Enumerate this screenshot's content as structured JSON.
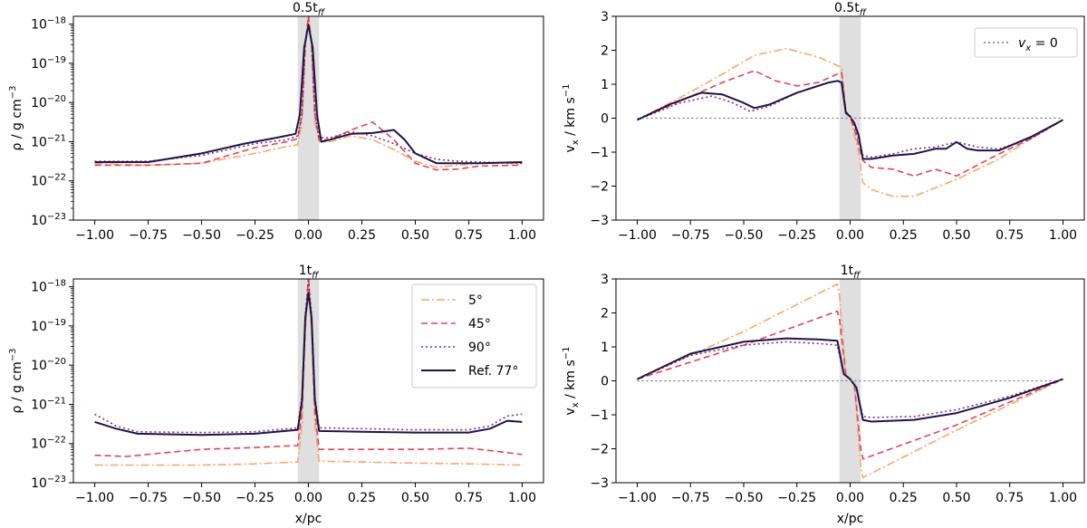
{
  "colors": {
    "5deg": "#f9a66b",
    "45deg": "#e0455f",
    "90deg": "#8a2a7a",
    "ref": "#1d1447",
    "zero_line": "#777777",
    "shade": "#d9d9d9"
  },
  "shared": {
    "xlabel": "x/pc",
    "density_ylabel_main": "ρ / g cm",
    "density_ylabel_exp": "−3",
    "velocity_ylabel_main": "v",
    "velocity_ylabel_sub": "x",
    "velocity_ylabel_unit": " / km s",
    "velocity_ylabel_exp": "−1",
    "x_ticks": [
      "−1.00",
      "−0.75",
      "−0.50",
      "−0.25",
      "0.00",
      "0.25",
      "0.50",
      "0.75",
      "1.00"
    ],
    "density_yticks": [
      {
        "base": "10",
        "exp": "−23"
      },
      {
        "base": "10",
        "exp": "−22"
      },
      {
        "base": "10",
        "exp": "−21"
      },
      {
        "base": "10",
        "exp": "−20"
      },
      {
        "base": "10",
        "exp": "−19"
      },
      {
        "base": "10",
        "exp": "−18"
      }
    ],
    "velocity_yticks": [
      "−3",
      "−2",
      "−1",
      "0",
      "1",
      "2",
      "3"
    ],
    "shaded_region_x": [
      -0.05,
      0.05
    ]
  },
  "legend_density": {
    "entries": [
      {
        "key": "5deg",
        "label": "5°"
      },
      {
        "key": "45deg",
        "label": "45°"
      },
      {
        "key": "90deg",
        "label": "90°"
      },
      {
        "key": "ref",
        "label": "Ref. 77°"
      }
    ]
  },
  "legend_velocity": {
    "main": "v",
    "sub": "x",
    "rest": " = 0"
  },
  "chart_data": [
    {
      "type": "line",
      "panel": "density_0.5tff",
      "title_main": "0.5t",
      "title_sub": "ff",
      "xlim": [
        -1.1,
        1.1
      ],
      "ylim_log10": [
        -23,
        -17.8
      ],
      "xlabel": "",
      "ylabel": "ρ / g cm−3",
      "series": [
        {
          "key": "5deg",
          "name": "5°",
          "x": [
            -1,
            -0.75,
            -0.5,
            -0.25,
            -0.1,
            -0.05,
            -0.03,
            -0.015,
            0,
            0.015,
            0.03,
            0.05,
            0.1,
            0.2,
            0.3,
            0.4,
            0.5,
            0.6,
            0.7,
            0.8,
            1.0
          ],
          "y_log10": [
            -21.56,
            -21.6,
            -21.55,
            -21.3,
            -21.12,
            -21.08,
            -20.5,
            -18.6,
            -17.7,
            -18.6,
            -20.5,
            -21.0,
            -21.0,
            -20.85,
            -20.95,
            -21.2,
            -21.5,
            -21.65,
            -21.6,
            -21.55,
            -21.56
          ]
        },
        {
          "key": "45deg",
          "name": "45°",
          "x": [
            -1,
            -0.75,
            -0.5,
            -0.25,
            -0.1,
            -0.05,
            -0.03,
            -0.015,
            0,
            0.015,
            0.03,
            0.05,
            0.1,
            0.2,
            0.3,
            0.4,
            0.5,
            0.6,
            0.7,
            0.8,
            1.0
          ],
          "y_log10": [
            -21.6,
            -21.6,
            -21.55,
            -21.15,
            -21.0,
            -20.92,
            -20.3,
            -18.5,
            -17.8,
            -18.5,
            -20.3,
            -20.95,
            -20.95,
            -20.7,
            -20.5,
            -20.95,
            -21.55,
            -21.72,
            -21.7,
            -21.62,
            -21.6
          ]
        },
        {
          "key": "90deg",
          "name": "90°",
          "x": [
            -1,
            -0.75,
            -0.5,
            -0.25,
            -0.1,
            -0.05,
            -0.03,
            -0.015,
            0,
            0.015,
            0.03,
            0.05,
            0.1,
            0.2,
            0.3,
            0.4,
            0.5,
            0.6,
            0.7,
            0.8,
            1.0
          ],
          "y_log10": [
            -21.5,
            -21.5,
            -21.35,
            -21.05,
            -20.95,
            -20.85,
            -20.3,
            -18.5,
            -18.0,
            -18.5,
            -20.3,
            -20.9,
            -20.9,
            -20.75,
            -20.85,
            -21.05,
            -21.3,
            -21.45,
            -21.5,
            -21.52,
            -21.55
          ]
        },
        {
          "key": "ref",
          "name": "Ref. 77°",
          "x": [
            -1,
            -0.75,
            -0.5,
            -0.3,
            -0.15,
            -0.06,
            -0.04,
            -0.02,
            0,
            0.02,
            0.04,
            0.06,
            0.1,
            0.2,
            0.3,
            0.4,
            0.45,
            0.5,
            0.6,
            0.8,
            1.0
          ],
          "y_log10": [
            -21.52,
            -21.52,
            -21.3,
            -21.05,
            -20.9,
            -20.8,
            -20.3,
            -18.6,
            -18.02,
            -18.6,
            -20.3,
            -21.0,
            -20.95,
            -20.8,
            -20.78,
            -20.7,
            -20.95,
            -21.3,
            -21.55,
            -21.55,
            -21.52
          ]
        }
      ]
    },
    {
      "type": "line",
      "panel": "velocity_0.5tff",
      "title_main": "0.5t",
      "title_sub": "ff",
      "xlim": [
        -1.1,
        1.1
      ],
      "ylim": [
        -3,
        3
      ],
      "xlabel": "",
      "ylabel": "vx / km s−1",
      "series": [
        {
          "key": "5deg",
          "name": "5°",
          "x": [
            -1,
            -0.8,
            -0.6,
            -0.45,
            -0.3,
            -0.15,
            -0.06,
            -0.04,
            -0.02,
            0,
            0.02,
            0.04,
            0.06,
            0.1,
            0.2,
            0.3,
            0.5,
            0.7,
            0.85,
            1.0
          ],
          "y": [
            -0.05,
            0.6,
            1.3,
            1.85,
            2.05,
            1.8,
            1.55,
            1.5,
            0.2,
            0.05,
            -0.5,
            -1.0,
            -1.9,
            -2.1,
            -2.3,
            -2.3,
            -1.8,
            -1.2,
            -0.6,
            -0.05
          ]
        },
        {
          "key": "45deg",
          "name": "45°",
          "x": [
            -1,
            -0.8,
            -0.6,
            -0.45,
            -0.35,
            -0.25,
            -0.15,
            -0.06,
            -0.04,
            -0.02,
            0,
            0.02,
            0.04,
            0.06,
            0.1,
            0.2,
            0.3,
            0.4,
            0.5,
            0.7,
            0.85,
            1.0
          ],
          "y": [
            -0.05,
            0.5,
            1.05,
            1.4,
            1.1,
            0.95,
            1.05,
            1.3,
            1.35,
            0.2,
            0.05,
            -0.3,
            -0.8,
            -1.25,
            -1.45,
            -1.5,
            -1.7,
            -1.5,
            -1.7,
            -1.05,
            -0.6,
            -0.05
          ]
        },
        {
          "key": "90deg",
          "name": "90°",
          "x": [
            -1,
            -0.8,
            -0.65,
            -0.55,
            -0.47,
            -0.38,
            -0.25,
            -0.1,
            -0.06,
            -0.04,
            -0.02,
            0,
            0.02,
            0.04,
            0.06,
            0.1,
            0.2,
            0.3,
            0.4,
            0.5,
            0.6,
            0.7,
            0.85,
            1.0
          ],
          "y": [
            -0.05,
            0.45,
            0.65,
            0.45,
            0.2,
            0.35,
            0.75,
            1.05,
            1.1,
            1.1,
            0.2,
            0.05,
            -0.2,
            -0.6,
            -1.1,
            -1.15,
            -1.05,
            -0.9,
            -0.85,
            -0.7,
            -0.85,
            -0.9,
            -0.6,
            -0.05
          ]
        },
        {
          "key": "ref",
          "name": "Ref. 77°",
          "x": [
            -1,
            -0.85,
            -0.7,
            -0.6,
            -0.5,
            -0.45,
            -0.38,
            -0.25,
            -0.1,
            -0.06,
            -0.04,
            -0.02,
            0,
            0.02,
            0.04,
            0.06,
            0.1,
            0.2,
            0.3,
            0.4,
            0.45,
            0.5,
            0.55,
            0.6,
            0.7,
            0.85,
            1.0
          ],
          "y": [
            -0.05,
            0.4,
            0.75,
            0.7,
            0.45,
            0.3,
            0.4,
            0.75,
            1.05,
            1.1,
            1.05,
            0.15,
            0.05,
            -0.15,
            -0.5,
            -1.2,
            -1.2,
            -1.1,
            -1.05,
            -0.9,
            -0.9,
            -0.7,
            -0.9,
            -0.95,
            -0.95,
            -0.55,
            -0.05
          ]
        },
        {
          "key": "zero_line",
          "name": "v_x = 0",
          "x": [
            -1,
            1
          ],
          "y": [
            0,
            0
          ]
        }
      ]
    },
    {
      "type": "line",
      "panel": "density_1tff",
      "title_main": "1t",
      "title_sub": "ff",
      "xlim": [
        -1.1,
        1.1
      ],
      "ylim_log10": [
        -23,
        -17.8
      ],
      "xlabel": "x/pc",
      "ylabel": "ρ / g cm−3",
      "series": [
        {
          "key": "5deg",
          "name": "5°",
          "x": [
            -1,
            -0.75,
            -0.5,
            -0.25,
            -0.05,
            -0.03,
            -0.015,
            0,
            0.015,
            0.03,
            0.05,
            0.25,
            0.5,
            0.75,
            1.0
          ],
          "y_log10": [
            -22.55,
            -22.55,
            -22.55,
            -22.52,
            -22.47,
            -21.5,
            -19.2,
            -17.7,
            -19.2,
            -21.5,
            -22.45,
            -22.47,
            -22.5,
            -22.52,
            -22.55
          ]
        },
        {
          "key": "45deg",
          "name": "45°",
          "x": [
            -1,
            -0.85,
            -0.7,
            -0.5,
            -0.25,
            -0.05,
            -0.03,
            -0.015,
            0,
            0.015,
            0.03,
            0.05,
            0.25,
            0.5,
            0.75,
            0.85,
            1.0
          ],
          "y_log10": [
            -22.3,
            -22.33,
            -22.25,
            -22.15,
            -22.1,
            -22.05,
            -21.2,
            -19.0,
            -17.7,
            -19.0,
            -21.2,
            -22.15,
            -22.15,
            -22.15,
            -22.12,
            -22.18,
            -22.28
          ]
        },
        {
          "key": "90deg",
          "name": "90°",
          "x": [
            -1,
            -0.9,
            -0.8,
            -0.5,
            -0.25,
            -0.05,
            -0.03,
            -0.015,
            0,
            0.015,
            0.03,
            0.05,
            0.25,
            0.5,
            0.75,
            0.85,
            0.93,
            1.0
          ],
          "y_log10": [
            -21.25,
            -21.55,
            -21.7,
            -21.72,
            -21.7,
            -21.6,
            -20.8,
            -18.7,
            -17.85,
            -18.7,
            -20.8,
            -21.6,
            -21.62,
            -21.65,
            -21.65,
            -21.55,
            -21.3,
            -21.25
          ]
        },
        {
          "key": "ref",
          "name": "Ref. 77°",
          "x": [
            -1,
            -0.9,
            -0.8,
            -0.5,
            -0.25,
            -0.05,
            -0.03,
            -0.015,
            0,
            0.015,
            0.03,
            0.05,
            0.25,
            0.5,
            0.75,
            0.85,
            0.93,
            1.0
          ],
          "y_log10": [
            -21.45,
            -21.62,
            -21.75,
            -21.78,
            -21.75,
            -21.65,
            -20.9,
            -18.8,
            -18.15,
            -18.8,
            -20.9,
            -21.68,
            -21.7,
            -21.72,
            -21.72,
            -21.62,
            -21.42,
            -21.45
          ]
        }
      ]
    },
    {
      "type": "line",
      "panel": "velocity_1tff",
      "title_main": "1t",
      "title_sub": "ff",
      "xlim": [
        -1.1,
        1.1
      ],
      "ylim": [
        -3,
        3
      ],
      "xlabel": "x/pc",
      "ylabel": "vx / km s−1",
      "series": [
        {
          "key": "5deg",
          "name": "5°",
          "x": [
            -1,
            -0.5,
            -0.06,
            -0.05,
            -0.02,
            0,
            0.02,
            0.05,
            0.06,
            0.5,
            1.0
          ],
          "y": [
            0.05,
            1.45,
            2.85,
            2.5,
            0.2,
            0.05,
            -0.1,
            -2.5,
            -2.85,
            -1.45,
            0.05
          ]
        },
        {
          "key": "45deg",
          "name": "45°",
          "x": [
            -1,
            -0.5,
            -0.06,
            -0.05,
            -0.02,
            0,
            0.02,
            0.05,
            0.06,
            0.5,
            1.0
          ],
          "y": [
            0.05,
            1.05,
            2.05,
            1.8,
            0.2,
            0.05,
            -0.15,
            -2.0,
            -2.3,
            -1.3,
            0.05
          ]
        },
        {
          "key": "90deg",
          "name": "90°",
          "x": [
            -1,
            -0.75,
            -0.5,
            -0.3,
            -0.15,
            -0.06,
            -0.03,
            0,
            0.03,
            0.06,
            0.1,
            0.3,
            0.5,
            0.75,
            1.0
          ],
          "y": [
            0.05,
            0.75,
            1.05,
            1.15,
            1.1,
            1.05,
            0.2,
            0.05,
            -0.2,
            -1.05,
            -1.08,
            -1.05,
            -0.85,
            -0.45,
            0.05
          ]
        },
        {
          "key": "ref",
          "name": "Ref. 77°",
          "x": [
            -1,
            -0.75,
            -0.5,
            -0.3,
            -0.15,
            -0.06,
            -0.03,
            0,
            0.03,
            0.06,
            0.1,
            0.3,
            0.5,
            0.75,
            1.0
          ],
          "y": [
            0.05,
            0.8,
            1.15,
            1.25,
            1.22,
            1.18,
            0.2,
            0.05,
            -0.2,
            -1.15,
            -1.2,
            -1.15,
            -0.95,
            -0.5,
            0.05
          ]
        },
        {
          "key": "zero_line",
          "name": "v_x = 0",
          "x": [
            -1,
            1
          ],
          "y": [
            0,
            0
          ]
        }
      ]
    }
  ]
}
